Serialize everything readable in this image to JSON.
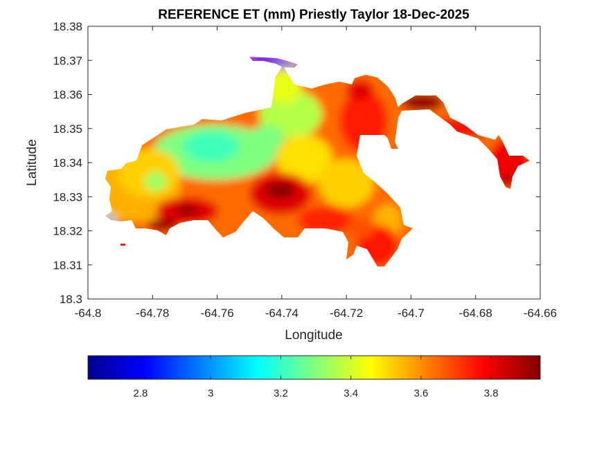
{
  "chart_data": {
    "type": "heatmap",
    "title": "REFERENCE ET (mm) Priestly Taylor 18-Dec-2025",
    "xlabel": "Longitude",
    "ylabel": "Latitude",
    "xlim": [
      -64.8,
      -64.66
    ],
    "ylim": [
      18.3,
      18.38
    ],
    "x_ticks": [
      -64.8,
      -64.78,
      -64.76,
      -64.74,
      -64.72,
      -64.7,
      -64.68,
      -64.66
    ],
    "x_tick_labels": [
      "-64.8",
      "-64.78",
      "-64.76",
      "-64.74",
      "-64.72",
      "-64.7",
      "-64.68",
      "-64.66"
    ],
    "y_ticks": [
      18.3,
      18.31,
      18.32,
      18.33,
      18.34,
      18.35,
      18.36,
      18.37,
      18.38
    ],
    "y_tick_labels": [
      "18.3",
      "18.31",
      "18.32",
      "18.33",
      "18.34",
      "18.35",
      "18.36",
      "18.37",
      "18.38"
    ],
    "colormap": "jet",
    "color_range": [
      2.65,
      3.94
    ],
    "colorbar_ticks": [
      2.8,
      3.0,
      3.2,
      3.4,
      3.6,
      3.8
    ],
    "colorbar_tick_labels": [
      "2.8",
      "3",
      "3.2",
      "3.4",
      "3.6",
      "3.8"
    ],
    "colorbar_location": "bottom",
    "grid": false
  }
}
